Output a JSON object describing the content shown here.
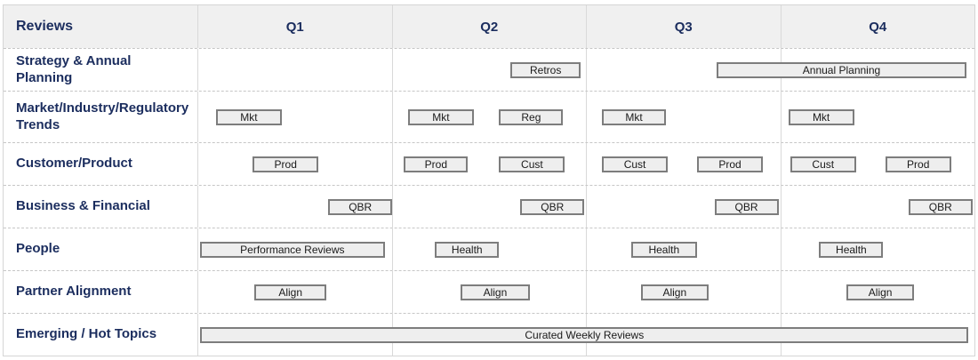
{
  "header": {
    "label": "Reviews",
    "quarters": [
      "Q1",
      "Q2",
      "Q3",
      "Q4"
    ]
  },
  "colors": {
    "row_label_text": "#1b2d5e",
    "header_background": "#f0f0f0",
    "bar_fill": "#eeeeee",
    "bar_border": "#7d7d7d",
    "grid_line_solid": "#d9d9d9",
    "grid_line_dashed": "#c6c6c6",
    "bar_text": "#1a1a1a"
  },
  "rows": [
    {
      "label": "Strategy & Annual Planning",
      "bars": [
        {
          "label": "Retros",
          "start": 1.61,
          "end": 1.97
        },
        {
          "label": "Annual Planning",
          "start": 2.67,
          "end": 3.96
        }
      ]
    },
    {
      "label": "Market/Industry/Regulatory Trends",
      "bars": [
        {
          "label": "Mkt",
          "start": 0.09,
          "end": 0.43
        },
        {
          "label": "Mkt",
          "start": 1.08,
          "end": 1.42
        },
        {
          "label": "Reg",
          "start": 1.55,
          "end": 1.88
        },
        {
          "label": "Mkt",
          "start": 2.08,
          "end": 2.41
        },
        {
          "label": "Mkt",
          "start": 3.04,
          "end": 3.38
        }
      ]
    },
    {
      "label": "Customer/Product",
      "bars": [
        {
          "label": "Prod",
          "start": 0.28,
          "end": 0.62
        },
        {
          "label": "Prod",
          "start": 1.06,
          "end": 1.39
        },
        {
          "label": "Cust",
          "start": 1.55,
          "end": 1.89
        },
        {
          "label": "Cust",
          "start": 2.08,
          "end": 2.42
        },
        {
          "label": "Prod",
          "start": 2.57,
          "end": 2.91
        },
        {
          "label": "Cust",
          "start": 3.05,
          "end": 3.39
        },
        {
          "label": "Prod",
          "start": 3.54,
          "end": 3.88
        }
      ]
    },
    {
      "label": "Business & Financial",
      "bars": [
        {
          "label": "QBR",
          "start": 0.67,
          "end": 1.0
        },
        {
          "label": "QBR",
          "start": 1.66,
          "end": 1.99
        },
        {
          "label": "QBR",
          "start": 2.66,
          "end": 2.99
        },
        {
          "label": "QBR",
          "start": 3.66,
          "end": 3.99
        }
      ]
    },
    {
      "label": "People",
      "bars": [
        {
          "label": "Performance Reviews",
          "start": 0.01,
          "end": 0.96
        },
        {
          "label": "Health",
          "start": 1.22,
          "end": 1.55
        },
        {
          "label": "Health",
          "start": 2.23,
          "end": 2.57
        },
        {
          "label": "Health",
          "start": 3.2,
          "end": 3.53
        }
      ]
    },
    {
      "label": "Partner Alignment",
      "bars": [
        {
          "label": "Align",
          "start": 0.29,
          "end": 0.66
        },
        {
          "label": "Align",
          "start": 1.35,
          "end": 1.71
        },
        {
          "label": "Align",
          "start": 2.28,
          "end": 2.63
        },
        {
          "label": "Align",
          "start": 3.34,
          "end": 3.69
        }
      ]
    },
    {
      "label": "Emerging / Hot Topics",
      "bars": [
        {
          "label": "Curated Weekly Reviews",
          "start": 0.01,
          "end": 3.97
        }
      ]
    }
  ]
}
